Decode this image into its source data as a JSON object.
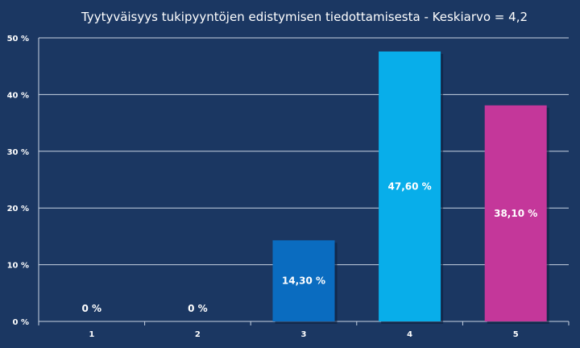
{
  "chart_data": {
    "type": "bar",
    "title": "Tyytyväisyys tukipyyntöjen edistymisen tiedottamisesta  - Keskiarvo = 4,2",
    "categories": [
      "1",
      "2",
      "3",
      "4",
      "5"
    ],
    "values": [
      0,
      0,
      14.3,
      47.6,
      38.1
    ],
    "data_labels": [
      "0 %",
      "0 %",
      "14,30 %",
      "47,60 %",
      "38,10 %"
    ],
    "bar_colors": [
      "#0a6fc4",
      "#0a6fc4",
      "#0a6cc0",
      "#08aeea",
      "#c4379a"
    ],
    "yticks": [
      "0 %",
      "10 %",
      "20 %",
      "30 %",
      "40 %",
      "50 %"
    ],
    "ytick_values": [
      0,
      10,
      20,
      30,
      40,
      50
    ],
    "ylim": [
      0,
      50
    ],
    "grid": true,
    "legend": "none"
  }
}
